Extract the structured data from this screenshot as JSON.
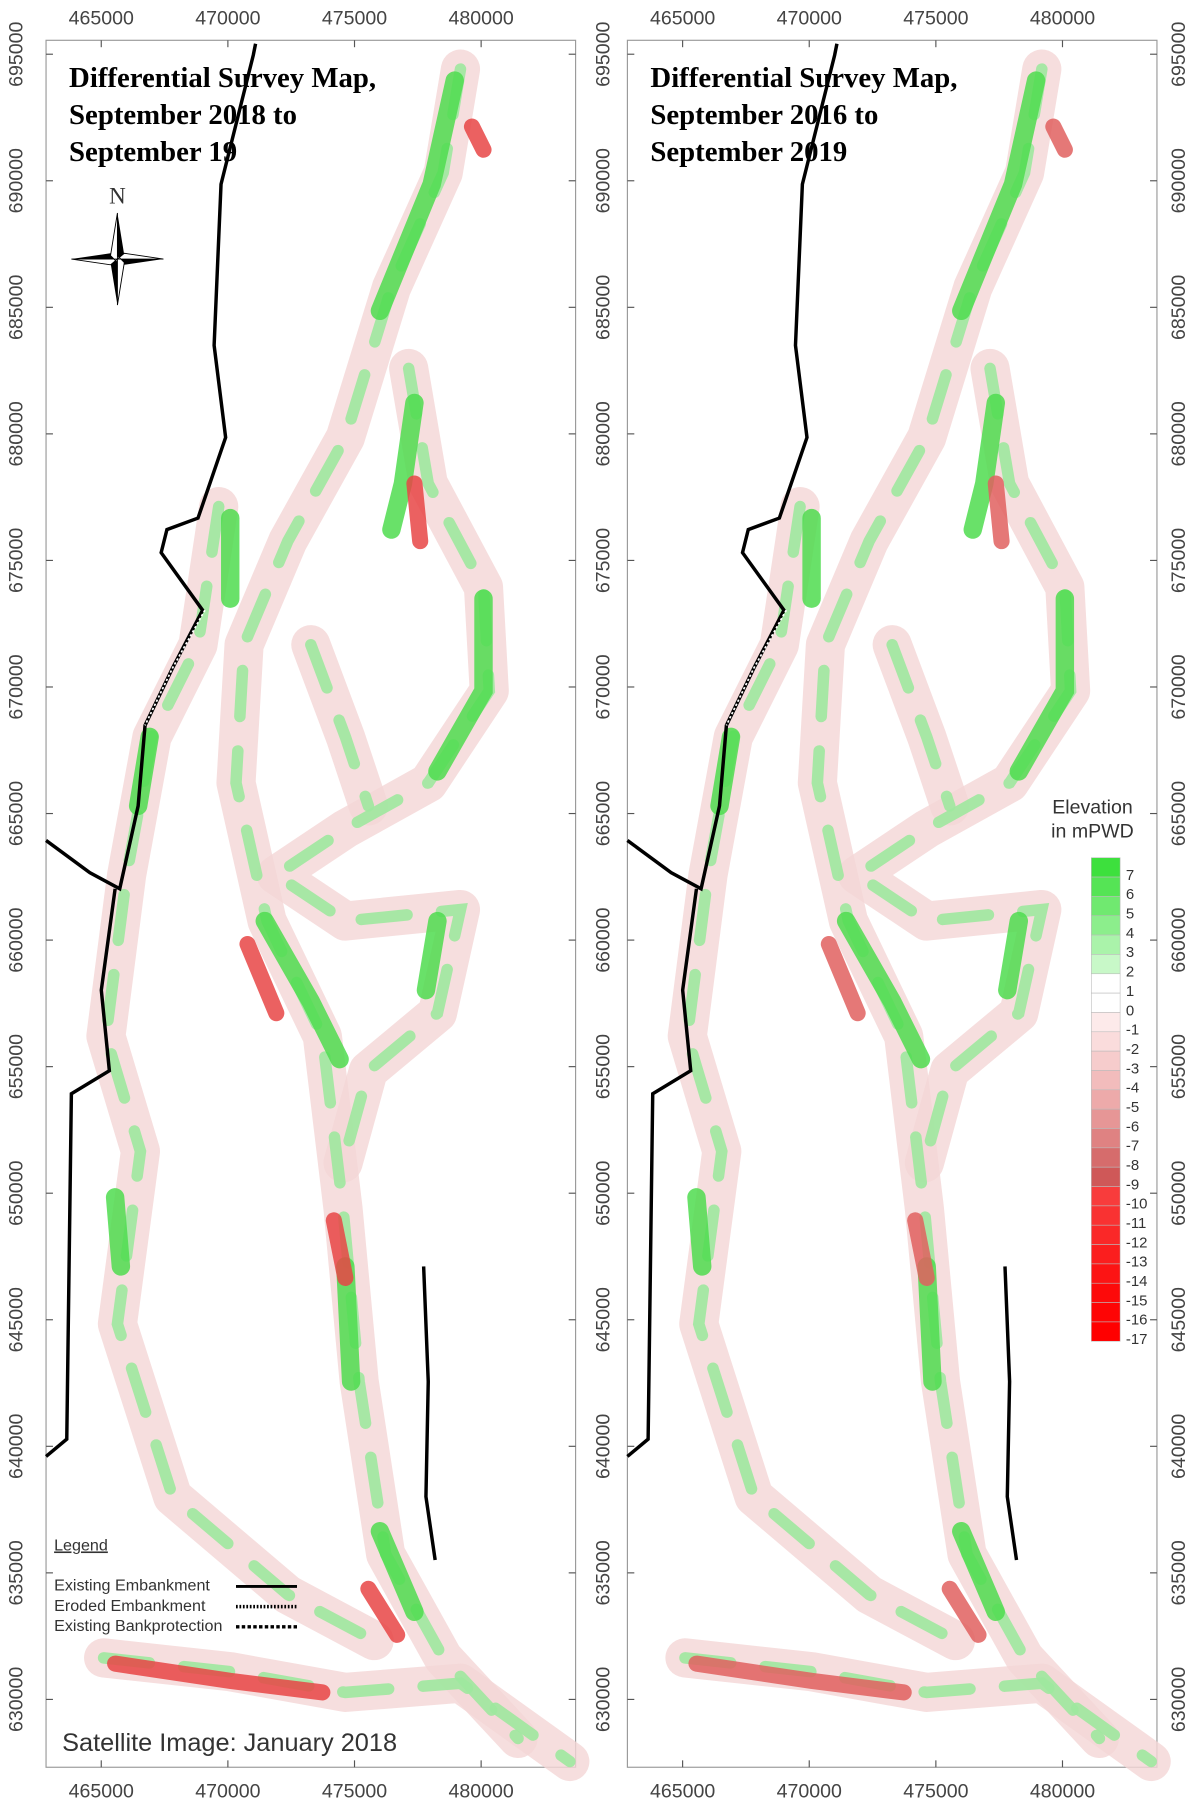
{
  "maps": [
    {
      "title_lines": [
        "Differential Survey Map,",
        "September 2018 to",
        "September 19"
      ],
      "xlim": [
        462820,
        483730
      ],
      "ylim": [
        627320,
        695550
      ],
      "xticks": [
        465000,
        470000,
        475000,
        480000
      ],
      "yticks": [
        630000,
        635000,
        640000,
        645000,
        650000,
        655000,
        660000,
        665000,
        670000,
        675000,
        680000,
        685000,
        690000,
        695000
      ],
      "north": "N",
      "legend": {
        "title": "Legend",
        "items": [
          "Existing Embankment",
          "Eroded Embankment",
          "Existing Bankprotection"
        ]
      },
      "note": "Satellite Image: January 2018"
    },
    {
      "title_lines": [
        "Differential Survey Map,",
        "September 2016 to",
        "September 2019"
      ],
      "xlim": [
        462820,
        483730
      ],
      "ylim": [
        627320,
        695550
      ],
      "xticks": [
        465000,
        470000,
        475000,
        480000
      ],
      "yticks": [
        630000,
        635000,
        640000,
        645000,
        650000,
        655000,
        660000,
        665000,
        670000,
        675000,
        680000,
        685000,
        690000,
        695000
      ],
      "colorbar": {
        "title_lines": [
          "Elevation",
          "in mPWD"
        ],
        "classes": [
          {
            "value": 7,
            "color": "#3de03d"
          },
          {
            "value": 6,
            "color": "#55e455"
          },
          {
            "value": 5,
            "color": "#70e970"
          },
          {
            "value": 4,
            "color": "#8cee8c"
          },
          {
            "value": 3,
            "color": "#aaf3aa"
          },
          {
            "value": 2,
            "color": "#c8f8c8"
          },
          {
            "value": 1,
            "color": "#ffffff"
          },
          {
            "value": 0,
            "color": "#ffffff"
          },
          {
            "value": -1,
            "color": "#fdeaea"
          },
          {
            "value": -2,
            "color": "#fadcdc"
          },
          {
            "value": -3,
            "color": "#f6cccc"
          },
          {
            "value": -4,
            "color": "#f2bcbc"
          },
          {
            "value": -5,
            "color": "#edaaaa"
          },
          {
            "value": -6,
            "color": "#e69696"
          },
          {
            "value": -7,
            "color": "#df8282"
          },
          {
            "value": -8,
            "color": "#d66c6c"
          },
          {
            "value": -9,
            "color": "#cf5858"
          },
          {
            "value": -10,
            "color": "#f83c3c"
          },
          {
            "value": -11,
            "color": "#f93232"
          },
          {
            "value": -12,
            "color": "#fa2828"
          },
          {
            "value": -13,
            "color": "#fb1e1e"
          },
          {
            "value": -14,
            "color": "#fc1414"
          },
          {
            "value": -15,
            "color": "#fd0a0a"
          },
          {
            "value": -16,
            "color": "#fe0505"
          },
          {
            "value": -17,
            "color": "#ff0000"
          }
        ]
      }
    }
  ]
}
